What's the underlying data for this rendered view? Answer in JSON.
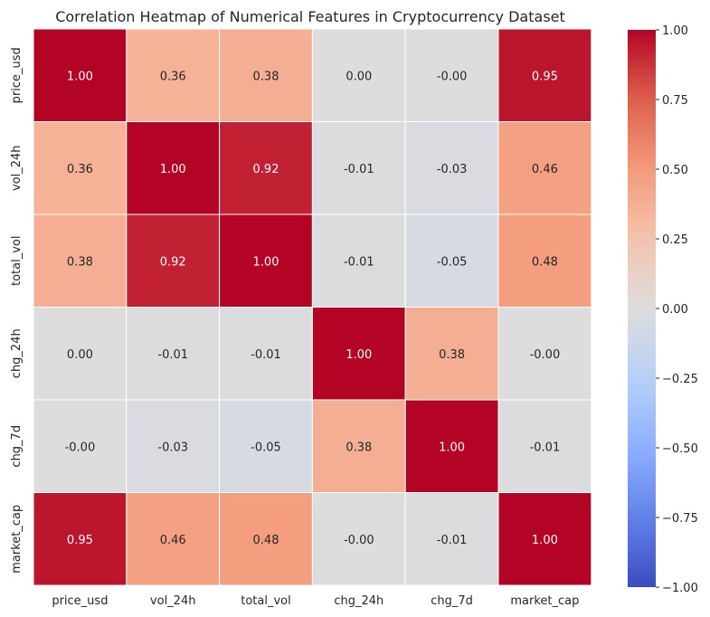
{
  "chart_data": {
    "type": "heatmap",
    "title": "Correlation Heatmap of Numerical Features in Cryptocurrency Dataset",
    "xlabel": "",
    "ylabel": "",
    "row_labels": [
      "price_usd",
      "vol_24h",
      "total_vol",
      "chg_24h",
      "chg_7d",
      "market_cap"
    ],
    "col_labels": [
      "price_usd",
      "vol_24h",
      "total_vol",
      "chg_24h",
      "chg_7d",
      "market_cap"
    ],
    "values": [
      [
        1.0,
        0.36,
        0.38,
        0.0,
        -0.0,
        0.95
      ],
      [
        0.36,
        1.0,
        0.92,
        -0.01,
        -0.03,
        0.46
      ],
      [
        0.38,
        0.92,
        1.0,
        -0.01,
        -0.05,
        0.48
      ],
      [
        0.0,
        -0.01,
        -0.01,
        1.0,
        0.38,
        -0.0
      ],
      [
        -0.0,
        -0.03,
        -0.05,
        0.38,
        1.0,
        -0.01
      ],
      [
        0.95,
        0.46,
        0.48,
        -0.0,
        -0.01,
        1.0
      ]
    ],
    "cell_text": [
      [
        "1.00",
        "0.36",
        "0.38",
        "0.00",
        "-0.00",
        "0.95"
      ],
      [
        "0.36",
        "1.00",
        "0.92",
        "-0.01",
        "-0.03",
        "0.46"
      ],
      [
        "0.38",
        "0.92",
        "1.00",
        "-0.01",
        "-0.05",
        "0.48"
      ],
      [
        "0.00",
        "-0.01",
        "-0.01",
        "1.00",
        "0.38",
        "-0.00"
      ],
      [
        "-0.00",
        "-0.03",
        "-0.05",
        "0.38",
        "1.00",
        "-0.01"
      ],
      [
        "0.95",
        "0.46",
        "0.48",
        "-0.00",
        "-0.01",
        "1.00"
      ]
    ],
    "colormap": "coolwarm",
    "vmin": -1.0,
    "vmax": 1.0,
    "colorbar_ticks": [
      1.0,
      0.75,
      0.5,
      0.25,
      0.0,
      -0.25,
      -0.5,
      -0.75,
      -1.0
    ],
    "colorbar_tick_labels": [
      "1.00",
      "0.75",
      "0.50",
      "0.25",
      "0.00",
      "−0.25",
      "−0.50",
      "−0.75",
      "−1.00"
    ],
    "annotations": true,
    "grid": false
  }
}
